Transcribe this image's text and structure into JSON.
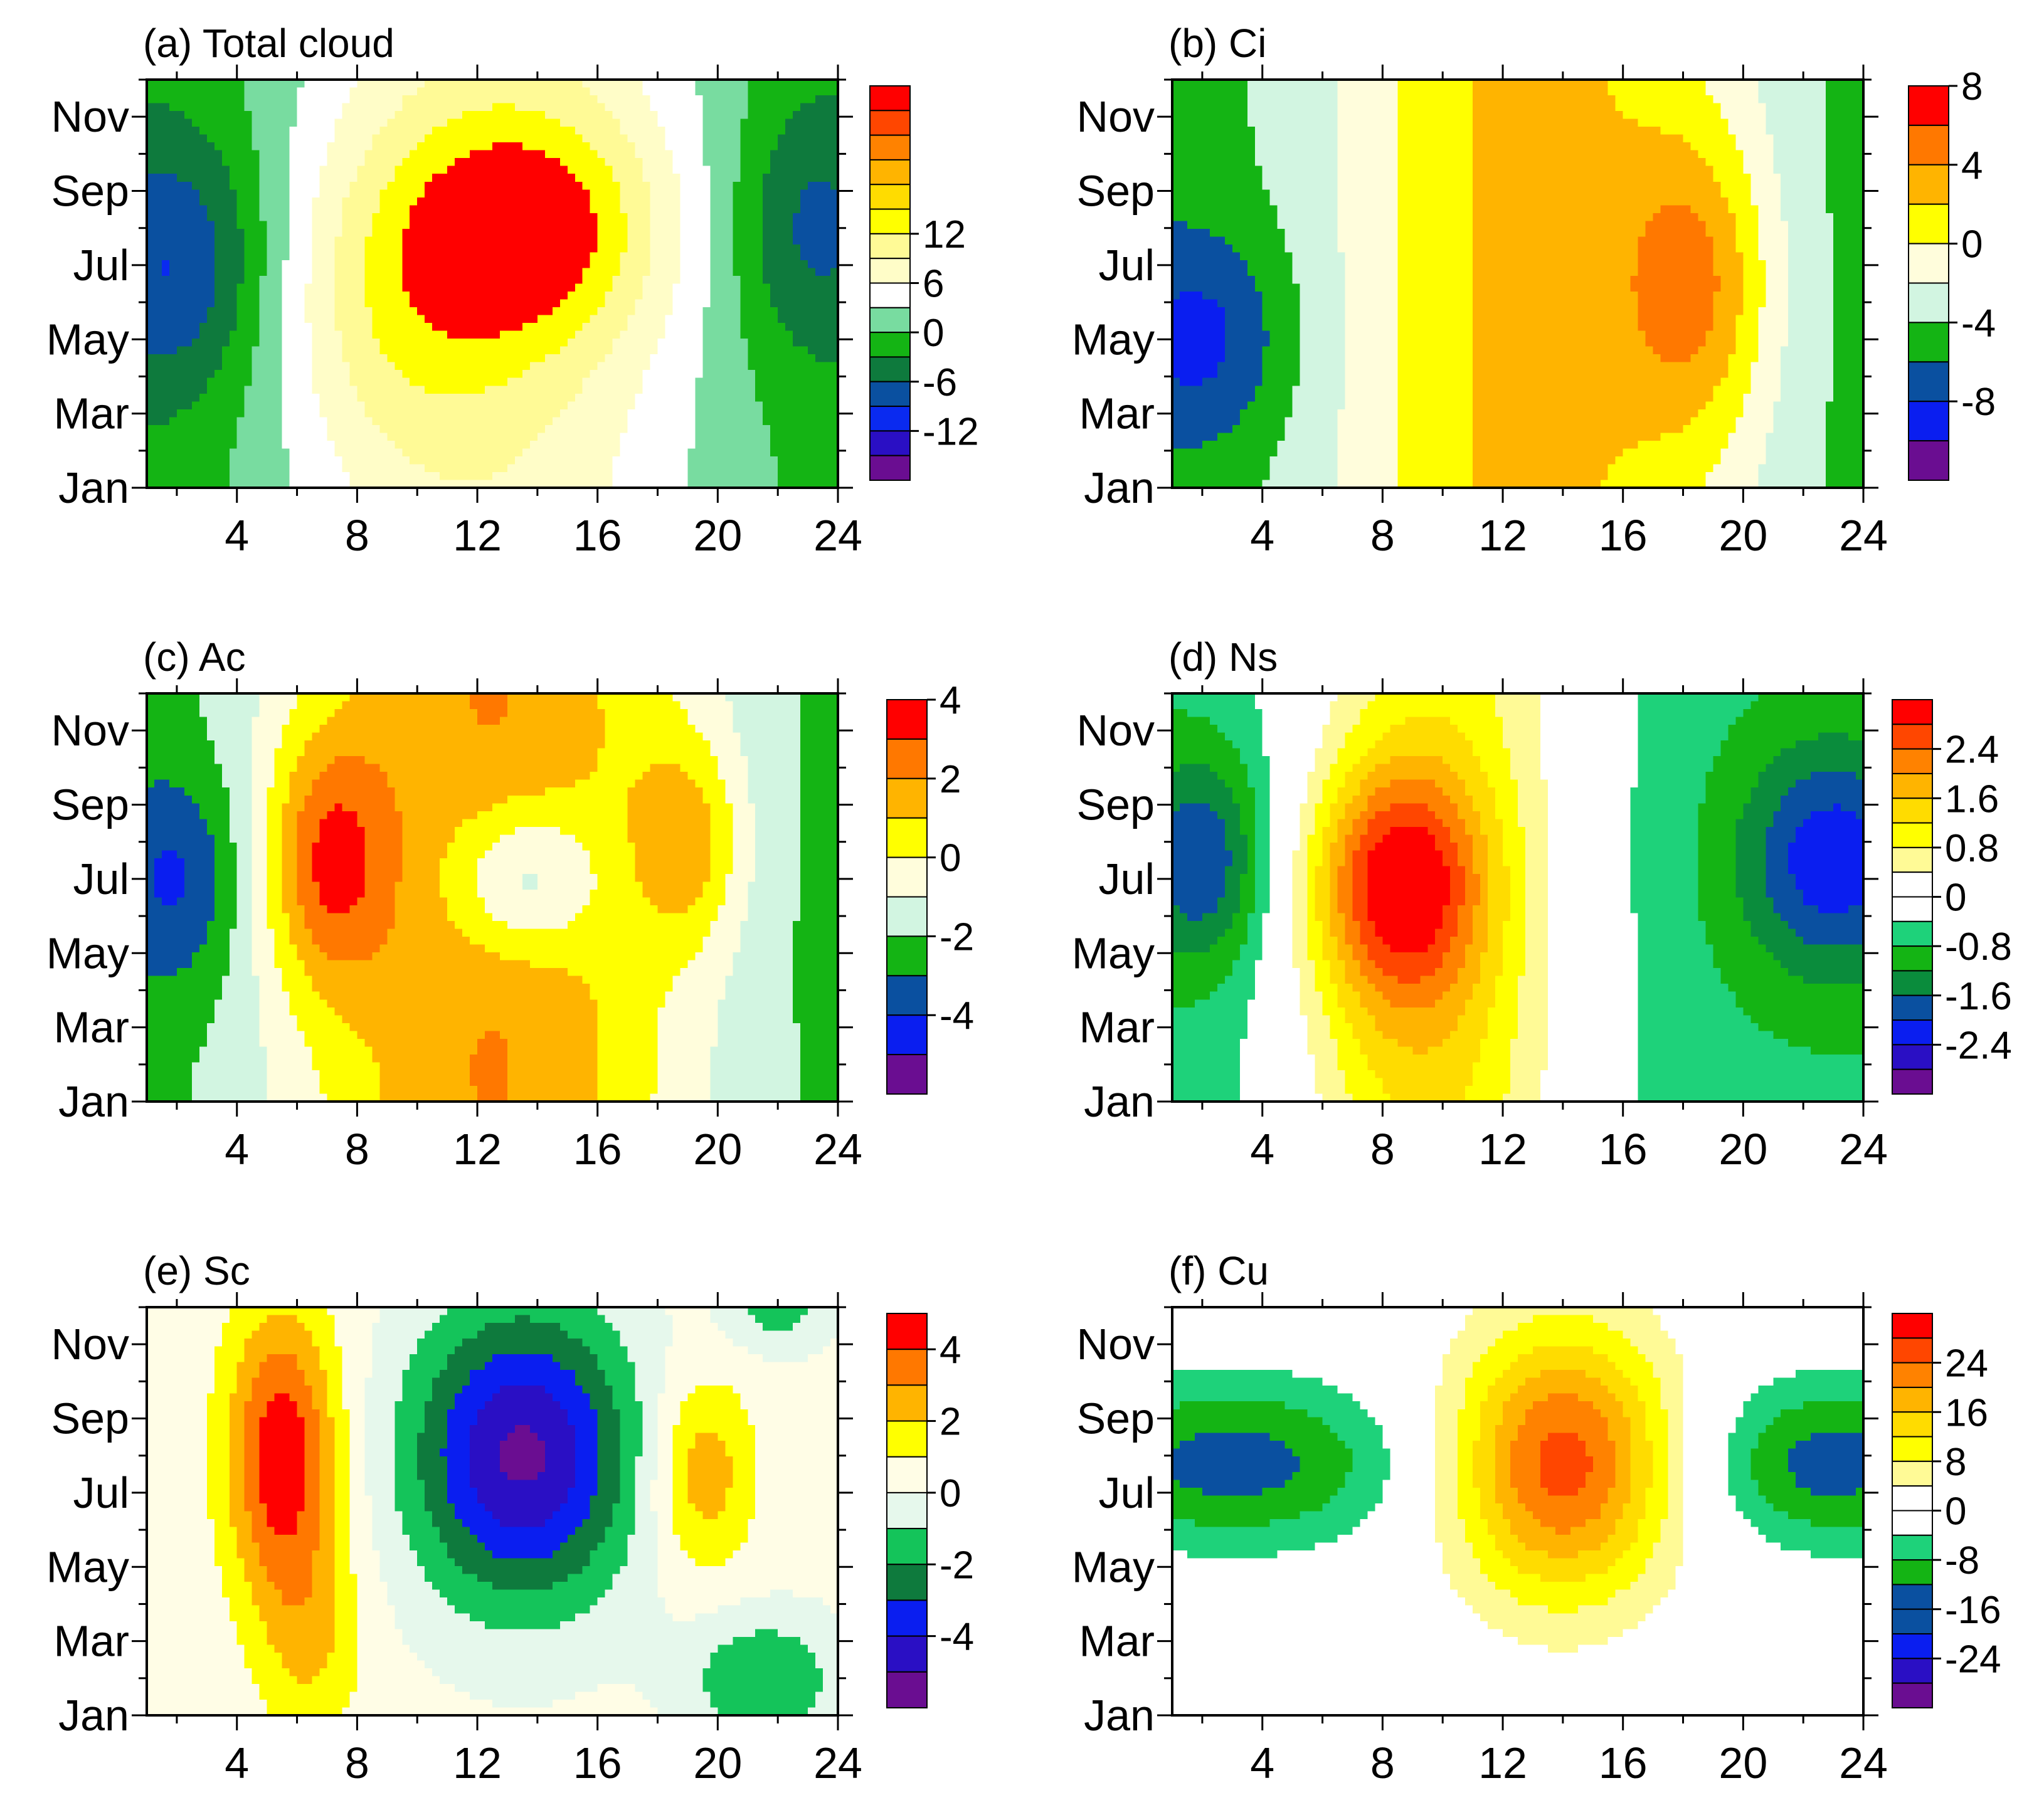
{
  "figure": {
    "panels": [
      {
        "id": "a",
        "title": "(a) Total cloud",
        "chart_data": {
          "type": "heatmap",
          "title": "(a) Total cloud",
          "x": {
            "label": "",
            "range": [
              1,
              24
            ],
            "ticks": [
              4,
              8,
              12,
              16,
              20,
              24
            ],
            "tick_labels": [
              "4",
              "8",
              "12",
              "16",
              "20",
              "24"
            ]
          },
          "y": {
            "label": "",
            "range": [
              1,
              12
            ],
            "ticks": [
              1,
              3,
              5,
              7,
              9,
              11
            ],
            "tick_labels": [
              "Jan",
              "Mar",
              "May",
              "Jul",
              "Sep",
              "Nov"
            ]
          },
          "levels": [
            -15,
            -12,
            -9,
            -6,
            -3,
            0,
            3,
            6,
            9,
            12,
            15
          ],
          "colorbar_labels": [
            {
              "value": 12,
              "label": "12"
            },
            {
              "value": 6,
              "label": "6"
            },
            {
              "value": 0,
              "label": "0"
            },
            {
              "value": -6,
              "label": "-6"
            },
            {
              "value": -12,
              "label": "-12"
            }
          ],
          "colors": [
            "#6a0d91",
            "#2a0fc4",
            "#0a2af0",
            "#0a50a0",
            "#0e7a3d",
            "#14b414",
            "#78dca0",
            "#ffffff",
            "#fffdc8",
            "#fffa96",
            "#ffff00",
            "#ffdc00",
            "#ffb400",
            "#ff8200",
            "#ff4600",
            "#ff0000"
          ],
          "features": [
            {
              "x": 14,
              "y": 8,
              "sx": 3.0,
              "sy": 2.2,
              "amp": 9.0
            },
            {
              "x": 9,
              "y": 6,
              "sx": 3.0,
              "sy": 3.5,
              "amp": 6.0
            },
            {
              "x": 2,
              "y": 7,
              "sx": 2.2,
              "sy": 2.5,
              "amp": -8.0
            },
            {
              "x": 23,
              "y": 8,
              "sx": 1.8,
              "sy": 2.5,
              "amp": -6.0
            }
          ],
          "diurnal": {
            "amp": 9.0,
            "center": 13.0,
            "width": 7.5,
            "offset": -2.0
          },
          "annual": {
            "amp": 2.0,
            "center": 7.5,
            "width": 6.0
          }
        }
      },
      {
        "id": "b",
        "title": "(b) Ci",
        "chart_data": {
          "type": "heatmap",
          "title": "(b) Ci",
          "x": {
            "label": "",
            "range": [
              1,
              24
            ],
            "ticks": [
              4,
              8,
              12,
              16,
              20,
              24
            ],
            "tick_labels": [
              "4",
              "8",
              "12",
              "16",
              "20",
              "24"
            ]
          },
          "y": {
            "label": "",
            "range": [
              1,
              12
            ],
            "ticks": [
              1,
              3,
              5,
              7,
              9,
              11
            ],
            "tick_labels": [
              "Jan",
              "Mar",
              "May",
              "Jul",
              "Sep",
              "Nov"
            ]
          },
          "levels": [
            -10,
            -8,
            -6,
            -4,
            -2,
            0,
            2,
            4,
            6,
            8,
            10
          ],
          "colorbar_labels": [
            {
              "value": 8,
              "label": "8"
            },
            {
              "value": 4,
              "label": "4"
            },
            {
              "value": 0,
              "label": "0"
            },
            {
              "value": -4,
              "label": "-4"
            },
            {
              "value": -8,
              "label": "-8"
            }
          ],
          "colors": [
            "#6a0d91",
            "#0a1ef0",
            "#0a50a0",
            "#14b414",
            "#d2f5e1",
            "#fffddc",
            "#ffff00",
            "#ffb400",
            "#ff7800",
            "#ff0000"
          ],
          "features": [
            {
              "x": 18.5,
              "y": 6.5,
              "sx": 1.8,
              "sy": 3.0,
              "amp": 6.0
            },
            {
              "x": 2,
              "y": 5,
              "sx": 2.0,
              "sy": 2.0,
              "amp": -4.0
            }
          ],
          "diurnal": {
            "amp": 7.5,
            "center": 13.0,
            "width": 7.0,
            "offset": -5.0
          },
          "annual": {
            "amp": 0.5,
            "center": 7.0,
            "width": 6.0
          }
        }
      },
      {
        "id": "c",
        "title": "(c) Ac",
        "chart_data": {
          "type": "heatmap",
          "title": "(c) Ac",
          "x": {
            "label": "",
            "range": [
              1,
              24
            ],
            "ticks": [
              4,
              8,
              12,
              16,
              20,
              24
            ],
            "tick_labels": [
              "4",
              "8",
              "12",
              "16",
              "20",
              "24"
            ]
          },
          "y": {
            "label": "",
            "range": [
              1,
              12
            ],
            "ticks": [
              1,
              3,
              5,
              7,
              9,
              11
            ],
            "tick_labels": [
              "Jan",
              "Mar",
              "May",
              "Jul",
              "Sep",
              "Nov"
            ]
          },
          "levels": [
            -5,
            -4,
            -3,
            -2,
            -1,
            0,
            1,
            2,
            3,
            4,
            5
          ],
          "colorbar_labels": [
            {
              "value": 4,
              "label": "4"
            },
            {
              "value": 2,
              "label": "2"
            },
            {
              "value": 0,
              "label": "0"
            },
            {
              "value": -2,
              "label": "-2"
            },
            {
              "value": -4,
              "label": "-4"
            }
          ],
          "colors": [
            "#6a0d91",
            "#0a1ef0",
            "#0a50a0",
            "#14b414",
            "#d2f5e1",
            "#fffddc",
            "#ffff00",
            "#ffb400",
            "#ff7800",
            "#ff0000"
          ],
          "features": [
            {
              "x": 7,
              "y": 7.5,
              "sx": 1.5,
              "sy": 2.5,
              "amp": 3.5
            },
            {
              "x": 19,
              "y": 8,
              "sx": 1.3,
              "sy": 2.0,
              "amp": 2.5
            },
            {
              "x": 13.5,
              "y": 7,
              "sx": 1.8,
              "sy": 1.5,
              "amp": -3.0
            },
            {
              "x": 2,
              "y": 7,
              "sx": 1.5,
              "sy": 2.0,
              "amp": -2.0
            }
          ],
          "diurnal": {
            "amp": 4.5,
            "center": 12.5,
            "width": 7.0,
            "offset": -2.5
          },
          "annual": {
            "amp": 0.3,
            "center": 7.0,
            "width": 6.0
          }
        }
      },
      {
        "id": "d",
        "title": "(d) Ns",
        "chart_data": {
          "type": "heatmap",
          "title": "(d) Ns",
          "x": {
            "label": "",
            "range": [
              1,
              24
            ],
            "ticks": [
              4,
              8,
              12,
              16,
              20,
              24
            ],
            "tick_labels": [
              "4",
              "8",
              "12",
              "16",
              "20",
              "24"
            ]
          },
          "y": {
            "label": "",
            "range": [
              1,
              12
            ],
            "ticks": [
              1,
              3,
              5,
              7,
              9,
              11
            ],
            "tick_labels": [
              "Jan",
              "Mar",
              "May",
              "Jul",
              "Sep",
              "Nov"
            ]
          },
          "levels": [
            -2.8,
            -2.4,
            -2.0,
            -1.6,
            -1.2,
            -0.8,
            -0.4,
            0,
            0.4,
            0.8,
            1.2,
            1.6,
            2.0,
            2.4,
            2.8
          ],
          "colorbar_labels": [
            {
              "value": 2.4,
              "label": "2.4"
            },
            {
              "value": 1.6,
              "label": "1.6"
            },
            {
              "value": 0.8,
              "label": "0.8"
            },
            {
              "value": 0,
              "label": "0"
            },
            {
              "value": -0.8,
              "label": "-0.8"
            },
            {
              "value": -1.6,
              "label": "-1.6"
            },
            {
              "value": -2.4,
              "label": "-2.4"
            }
          ],
          "colors": [
            "#6a0d91",
            "#2a0fc4",
            "#0a1ef0",
            "#0a50a0",
            "#0a8c3c",
            "#14b414",
            "#1ed27a",
            "#ffffff",
            "#ffffff",
            "#fffa96",
            "#ffff00",
            "#ffdc00",
            "#ffb400",
            "#ff8200",
            "#ff4600",
            "#ff0000"
          ],
          "features": [
            {
              "x": 8.5,
              "y": 7,
              "sx": 2.0,
              "sy": 2.2,
              "amp": 2.2
            },
            {
              "x": 8.5,
              "y": 4,
              "sx": 2.5,
              "sy": 3.5,
              "amp": 0.6
            },
            {
              "x": 2,
              "y": 7.5,
              "sx": 1.5,
              "sy": 2.0,
              "amp": -1.4
            },
            {
              "x": 23,
              "y": 7.5,
              "sx": 2.2,
              "sy": 2.2,
              "amp": -1.6
            }
          ],
          "diurnal": {
            "amp": 1.6,
            "center": 10.0,
            "width": 5.0,
            "offset": -0.7
          },
          "annual": {
            "amp": 0.1,
            "center": 7.0,
            "width": 6.0
          }
        }
      },
      {
        "id": "e",
        "title": "(e) Sc",
        "chart_data": {
          "type": "heatmap",
          "title": "(e) Sc",
          "x": {
            "label": "",
            "range": [
              1,
              24
            ],
            "ticks": [
              4,
              8,
              12,
              16,
              20,
              24
            ],
            "tick_labels": [
              "4",
              "8",
              "12",
              "16",
              "20",
              "24"
            ]
          },
          "y": {
            "label": "",
            "range": [
              1,
              12
            ],
            "ticks": [
              1,
              3,
              5,
              7,
              9,
              11
            ],
            "tick_labels": [
              "Jan",
              "Mar",
              "May",
              "Jul",
              "Sep",
              "Nov"
            ]
          },
          "levels": [
            -5,
            -4,
            -3,
            -2,
            -1,
            0,
            1,
            2,
            3,
            4,
            5
          ],
          "colorbar_labels": [
            {
              "value": 4,
              "label": "4"
            },
            {
              "value": 2,
              "label": "2"
            },
            {
              "value": 0,
              "label": "0"
            },
            {
              "value": -2,
              "label": "-2"
            },
            {
              "value": -4,
              "label": "-4"
            }
          ],
          "colors": [
            "#6a0d91",
            "#2a0fc4",
            "#0a1ef0",
            "#0e7a3d",
            "#14c45a",
            "#e6f8ec",
            "#fffde6",
            "#ffff00",
            "#ffb400",
            "#ff7800",
            "#ff0000"
          ],
          "features": [
            {
              "x": 13.5,
              "y": 8,
              "sx": 2.6,
              "sy": 2.8,
              "amp": -5.5
            },
            {
              "x": 5.5,
              "y": 8,
              "sx": 1.3,
              "sy": 2.8,
              "amp": 4.5
            },
            {
              "x": 6.5,
              "y": 3,
              "sx": 1.2,
              "sy": 2.0,
              "amp": 1.6
            },
            {
              "x": 19.5,
              "y": 7.5,
              "sx": 1.2,
              "sy": 1.8,
              "amp": 2.5
            },
            {
              "x": 21.5,
              "y": 2,
              "sx": 1.8,
              "sy": 1.2,
              "amp": -2.3
            },
            {
              "x": 22,
              "y": 12,
              "sx": 1.2,
              "sy": 0.8,
              "amp": -1.8
            }
          ],
          "diurnal": {
            "amp": 0,
            "center": 12.0,
            "width": 6.0,
            "offset": 0.3
          },
          "annual": {
            "amp": 0,
            "center": 7.0,
            "width": 6.0
          }
        }
      },
      {
        "id": "f",
        "title": "(f) Cu",
        "chart_data": {
          "type": "heatmap",
          "title": "(f) Cu",
          "x": {
            "label": "",
            "range": [
              1,
              24
            ],
            "ticks": [
              4,
              8,
              12,
              16,
              20,
              24
            ],
            "tick_labels": [
              "4",
              "8",
              "12",
              "16",
              "20",
              "24"
            ]
          },
          "y": {
            "label": "",
            "range": [
              1,
              12
            ],
            "ticks": [
              1,
              3,
              5,
              7,
              9,
              11
            ],
            "tick_labels": [
              "Jan",
              "Mar",
              "May",
              "Jul",
              "Sep",
              "Nov"
            ]
          },
          "levels": [
            -28,
            -24,
            -20,
            -16,
            -12,
            -8,
            -4,
            0,
            4,
            8,
            12,
            16,
            20,
            24,
            28
          ],
          "colorbar_labels": [
            {
              "value": 24,
              "label": "24"
            },
            {
              "value": 16,
              "label": "16"
            },
            {
              "value": 8,
              "label": "8"
            },
            {
              "value": 0,
              "label": "0"
            },
            {
              "value": -8,
              "label": "-8"
            },
            {
              "value": -16,
              "label": "-16"
            },
            {
              "value": -24,
              "label": "-24"
            }
          ],
          "colors": [
            "#6a0d91",
            "#2a0fc4",
            "#0a1ef0",
            "#0a50a0",
            "#0a50a0",
            "#14b414",
            "#1ed27a",
            "#ffffff",
            "#ffffff",
            "#fffa96",
            "#ffff00",
            "#ffdc00",
            "#ffb400",
            "#ff8200",
            "#ff4600",
            "#ff0000"
          ],
          "features": [
            {
              "x": 14,
              "y": 7.8,
              "sx": 2.6,
              "sy": 2.6,
              "amp": 26.0
            },
            {
              "x": 3,
              "y": 7.8,
              "sx": 4.0,
              "sy": 1.6,
              "amp": -14.0
            },
            {
              "x": 23,
              "y": 7.8,
              "sx": 3.0,
              "sy": 1.6,
              "amp": -14.0
            }
          ],
          "diurnal": {
            "amp": 0,
            "center": 12.0,
            "width": 6.0,
            "offset": 0
          },
          "annual": {
            "amp": 0,
            "center": 7.0,
            "width": 6.0
          }
        }
      }
    ]
  }
}
